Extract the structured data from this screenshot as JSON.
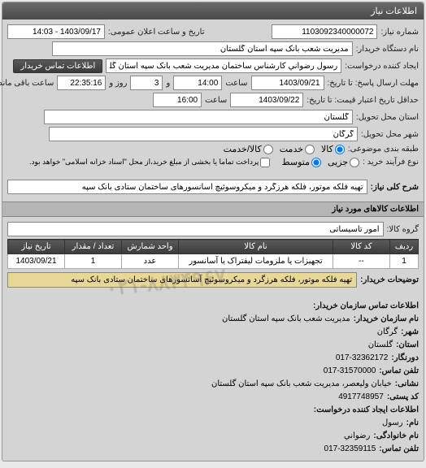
{
  "panel": {
    "title": "اطلاعات نیاز"
  },
  "header": {
    "ref_no_label": "شماره نیاز:",
    "ref_no": "1103092340000072",
    "date_label": "تاریخ و ساعت اعلان عمومی:",
    "date_value": "1403/09/17 - 14:03",
    "buyer_org_label": "نام دستگاه خریدار:",
    "buyer_org": "مدیریت شعب بانک سپه استان گلستان",
    "requester_label": "ایجاد کننده درخواست:",
    "requester": "رسول رضواني کارشناس ساختمان مدیریت شعب بانک سپه استان گلستان",
    "contact_btn": "اطلاعات تماس خریدار"
  },
  "deadlines": {
    "response_label": "مهلت ارسال پاسخ: تا تاریخ:",
    "response_date": "1403/09/21",
    "time_label": "ساعت",
    "response_time": "14:00",
    "days_and": "و",
    "days_value": "3",
    "days_label": "روز و",
    "remaining_time": "22:35:16",
    "remaining_label": "ساعت باقی مانده",
    "validity_label": "حداقل تاریخ اعتبار قیمت: تا تاریخ:",
    "validity_date": "1403/09/22",
    "validity_time": "16:00"
  },
  "delivery": {
    "province_label": "استان محل تحویل:",
    "province": "گلستان",
    "city_label": "شهر محل تحویل:",
    "city": "گرگان"
  },
  "category": {
    "label": "طبقه بندی موضوعی:",
    "options": {
      "goods": "کالا",
      "service": "خدمت",
      "goods_service": "کالا/خدمت"
    },
    "selected": "goods"
  },
  "process": {
    "label": "نوع فرآیند خرید :",
    "options": {
      "medium": "متوسط",
      "partial": "جزیی"
    },
    "selected": "medium",
    "payment_checkbox": "پرداخت تماما یا بخشی از مبلغ خرید،از محل \"اسناد خزانه اسلامی\" خواهد بود."
  },
  "need": {
    "title_label": "شرح کلی نیاز:",
    "title_value": "تهیه فلکه موتور، فلکه هرزگرد و میکروسوئیچ آسانسورهای ساختمان ستادی بانک سپه"
  },
  "goods_section": {
    "header": "اطلاعات کالاهای مورد نیاز",
    "group_label": "گروه کالا:",
    "group_value": "امور تاسیساتی"
  },
  "table": {
    "columns": {
      "row": "ردیف",
      "code": "کد کالا",
      "name": "نام کالا",
      "unit": "واحد شمارش",
      "qty": "تعداد / مقدار",
      "date": "تاریخ نیاز"
    },
    "rows": [
      {
        "row": "1",
        "code": "--",
        "name": "تجهیزات یا ملزومات لیفتراک یا آسانسور",
        "unit": "عدد",
        "qty": "1",
        "date": "1403/09/21"
      }
    ]
  },
  "buyer_notes": {
    "label": "توضیحات خریدار:",
    "value": "تهیه فلکه موتور، فلکه هرزگرد و میکروسوئیچ آسانسورهای ساختمان ستادی بانک سپه"
  },
  "watermark": "۰۲۱-۸۸۳۴۹۶۷",
  "contact": {
    "header": "اطلاعات تماس سازمان خریدار:",
    "org_label": "نام سازمان خریدار:",
    "org_value": "مدیریت شعب بانک سپه استان گلستان",
    "city_label": "شهر:",
    "city_value": "گرگان",
    "province_label": "استان:",
    "province_value": "گلستان",
    "fax_label": "دورنگار:",
    "fax_value": "017-32362172",
    "phone_label": "تلفن تماس:",
    "phone_value": "017-31570000",
    "address_label": "نشانی:",
    "address_value": "خیابان ولیعصر، مدیریت شعب بانک سپه استان گلستان",
    "postal_label": "کد پستی:",
    "postal_value": "4917748957",
    "requester_header": "اطلاعات ایجاد کننده درخواست:",
    "name_label": "نام:",
    "name_value": "رسول",
    "lastname_label": "نام خانوادگی:",
    "lastname_value": "رضواني",
    "req_phone_label": "تلفن تماس:",
    "req_phone_value": "017-32359115"
  }
}
